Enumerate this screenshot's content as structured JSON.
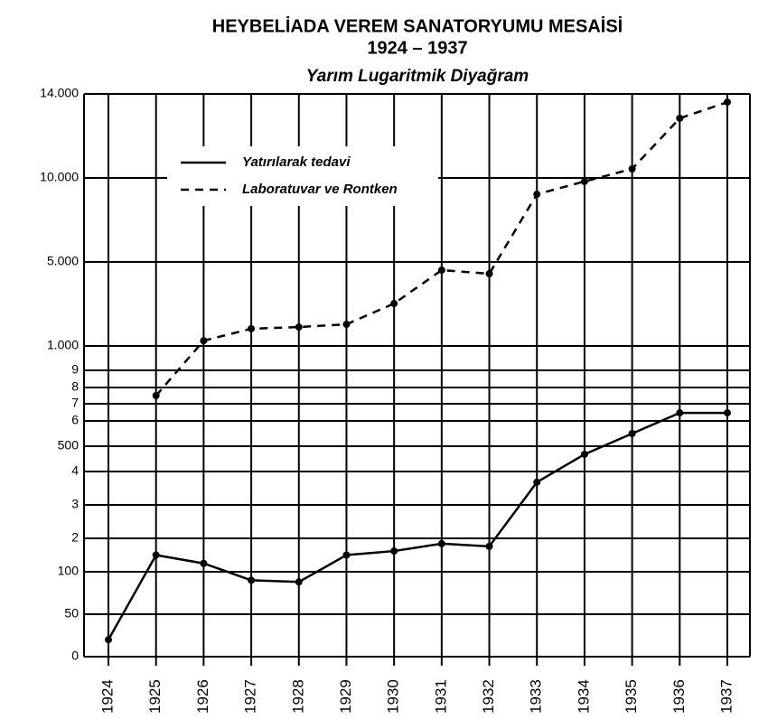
{
  "chart_data": {
    "type": "line",
    "title": [
      "HEYBELİADA VEREM SANATORYUMU MESAİSİ",
      "1924 – 1937"
    ],
    "subtitle": "Yarım Lugaritmik Diyağram",
    "categories": [
      "1924",
      "1925",
      "1926",
      "1927",
      "1928",
      "1929",
      "1930",
      "1931",
      "1932",
      "1933",
      "1934",
      "1935",
      "1936",
      "1937"
    ],
    "series": [
      {
        "name": "Yatırılarak tedavi",
        "color": "#000000",
        "dashed": false,
        "values": [
          20,
          150,
          125,
          90,
          88,
          150,
          162,
          184,
          176,
          368,
          468,
          550,
          647,
          647
        ]
      },
      {
        "name": "Laboratuvar ve Rontken",
        "color": "#000000",
        "dashed": true,
        "values": [
          null,
          750,
          1250,
          1820,
          1900,
          2030,
          3020,
          4610,
          4440,
          9030,
          9790,
          10430,
          12840,
          13610
        ]
      }
    ],
    "ylim": [
      0,
      14000
    ],
    "yticks": [
      0,
      50,
      100,
      {
        "value": 200,
        "label": "2"
      },
      {
        "value": 300,
        "label": "3"
      },
      {
        "value": 400,
        "label": "4"
      },
      500,
      {
        "value": 600,
        "label": "6"
      },
      {
        "value": 700,
        "label": "7"
      },
      {
        "value": 800,
        "label": "8"
      },
      {
        "value": 900,
        "label": "9"
      },
      {
        "value": 1000,
        "label": "1.000"
      },
      {
        "value": 5000,
        "label": "5.000"
      },
      {
        "value": 10000,
        "label": "10.000"
      },
      {
        "value": 14000,
        "label": "14.000"
      }
    ],
    "grid": true
  }
}
